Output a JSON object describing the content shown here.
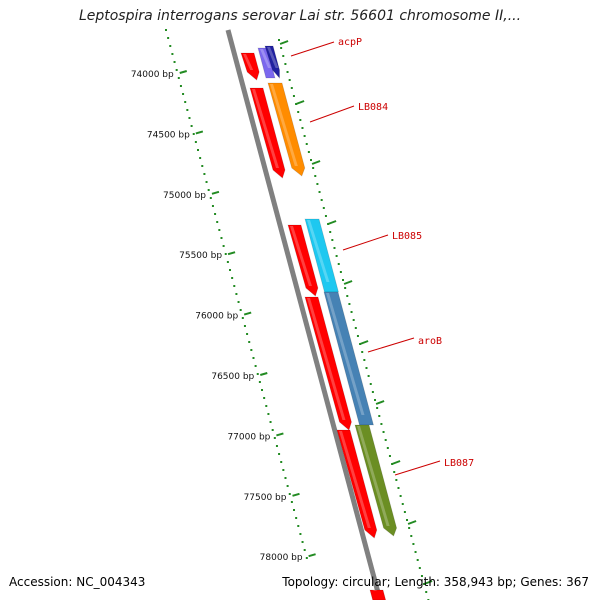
{
  "title": "Leptospira interrogans serovar Lai str. 56601 chromosome II,...",
  "footer": {
    "accession": "Accession: NC_004343",
    "stats": "Topology: circular; Length: 358,943 bp; Genes: 367"
  },
  "ruler": {
    "unit": "bp",
    "labels": [
      "74000 bp",
      "74500 bp",
      "75000 bp",
      "75500 bp",
      "76000 bp",
      "76500 bp",
      "77000 bp",
      "77500 bp",
      "78000 bp"
    ]
  },
  "genes": [
    {
      "name": "acpP",
      "color": "#2020a0"
    },
    {
      "name": "LB084",
      "color": "#ff8c00"
    },
    {
      "name": "LB085",
      "color": "#1ec8f0"
    },
    {
      "name": "aroB",
      "color": "#4682b4"
    },
    {
      "name": "LB087",
      "color": "#6b8e23"
    }
  ],
  "colors": {
    "backbone": "#808080",
    "ruler_dots": "#228b22",
    "cds_strand": "#ff0000",
    "callout_line": "#cc0000",
    "purple_gene": "#7b68ee"
  }
}
